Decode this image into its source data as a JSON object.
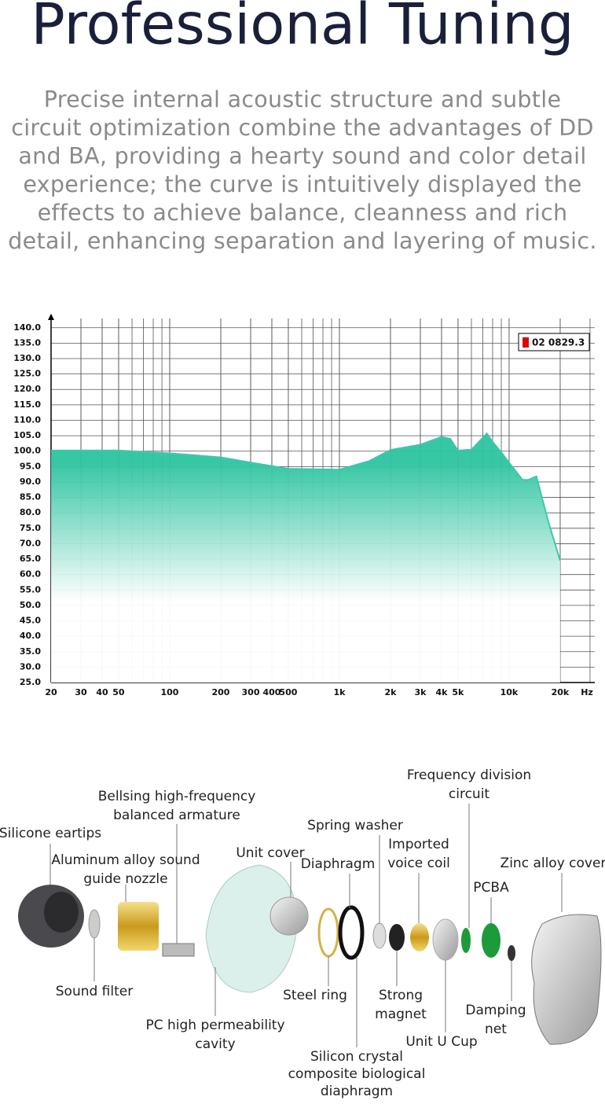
{
  "header": {
    "title": "Professional Tuning",
    "paragraph": [
      "Precise internal acoustic structure and subtle",
      "circuit optimization combine the advantages of DD",
      "and BA, providing a hearty sound and color detail",
      "experience; the curve is intuitively displayed the",
      "effects to achieve balance, cleanness and rich",
      "detail, enhancing separation and layering of music."
    ]
  },
  "chart_data": {
    "type": "area",
    "x_label": "Hz",
    "xscale": "log",
    "grid": true,
    "legend": "upper right",
    "x": [
      20,
      50,
      100,
      200,
      300,
      500,
      1000,
      1500,
      2000,
      3000,
      4000,
      4500,
      5000,
      6000,
      7400,
      8000,
      9000,
      10000,
      12000,
      13000,
      14500,
      15500,
      17000,
      20000
    ],
    "series": [
      {
        "name": "02 0829.3",
        "color": "#3cc9aa",
        "legend_color": "#e00000",
        "values": [
          100.2,
          100.2,
          99.3,
          98,
          96.3,
          94.3,
          94,
          96.8,
          100.4,
          102.1,
          104.6,
          104,
          100.2,
          100.5,
          105.7,
          103,
          99.6,
          96.3,
          90.7,
          90.7,
          91.8,
          85.7,
          77.3,
          64.5
        ]
      }
    ],
    "xlim": [
      20,
      32000
    ],
    "ylim": [
      25,
      143
    ],
    "xticks": [
      20,
      30,
      40,
      50,
      100,
      200,
      300,
      400,
      500,
      {
        "value": 1000,
        "label": "1k"
      },
      {
        "value": 2000,
        "label": "2k"
      },
      {
        "value": 3000,
        "label": "3k"
      },
      {
        "value": 4000,
        "label": "4k"
      },
      {
        "value": 5000,
        "label": "5k"
      },
      {
        "value": 10000,
        "label": "10k"
      },
      {
        "value": 20000,
        "label": "20k"
      }
    ],
    "yticks": [
      {
        "value": 25,
        "label": "25.0"
      },
      {
        "value": 30,
        "label": "30.0"
      },
      {
        "value": 35,
        "label": "35.0"
      },
      {
        "value": 40,
        "label": "40.0"
      },
      {
        "value": 45,
        "label": "45.0"
      },
      {
        "value": 50,
        "label": "50.0"
      },
      {
        "value": 55,
        "label": "55.0"
      },
      {
        "value": 60,
        "label": "60.0"
      },
      {
        "value": 65,
        "label": "65.0"
      },
      {
        "value": 70,
        "label": "70.0"
      },
      {
        "value": 75,
        "label": "75.0"
      },
      {
        "value": 80,
        "label": "80.0"
      },
      {
        "value": 85,
        "label": "85.0"
      },
      {
        "value": 90,
        "label": "90.0"
      },
      {
        "value": 95,
        "label": "95.0"
      },
      {
        "value": 100,
        "label": "100.0"
      },
      {
        "value": 105,
        "label": "105.0"
      },
      {
        "value": 110,
        "label": "110.0"
      },
      {
        "value": 115,
        "label": "115.0"
      },
      {
        "value": 120,
        "label": "120.0"
      },
      {
        "value": 125,
        "label": "125.0"
      },
      {
        "value": 130,
        "label": "130.0"
      },
      {
        "value": 135,
        "label": "135.0"
      },
      {
        "value": 140,
        "label": "140.0"
      }
    ]
  },
  "diagram": {
    "labels": [
      [
        "Silicone eartips"
      ],
      [
        "Bellsing high-frequency",
        "balanced armature"
      ],
      [
        "Aluminum alloy sound",
        "guide nozzle"
      ],
      [
        "Spring washer"
      ],
      [
        "Unit cover"
      ],
      [
        "Diaphragm"
      ],
      [
        "Imported",
        "voice coil"
      ],
      [
        "Frequency division",
        "circuit"
      ],
      [
        "Zinc alloy cover"
      ],
      [
        "PCBA"
      ],
      [
        "Sound filter"
      ],
      [
        "Steel ring"
      ],
      [
        "Strong",
        "magnet"
      ],
      [
        "Damping",
        "net"
      ],
      [
        "PC high permeability",
        "cavity"
      ],
      [
        "Unit U Cup"
      ],
      [
        "Silicon crystal",
        "composite biological",
        "diaphragm"
      ]
    ]
  }
}
